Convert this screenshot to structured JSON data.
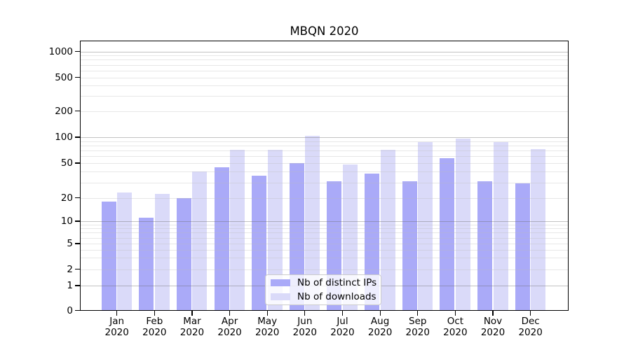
{
  "title": "MBQN 2020",
  "legend": {
    "items": [
      {
        "label": "Nb of distinct IPs",
        "color": "#aaaaf8"
      },
      {
        "label": "Nb of downloads",
        "color": "#dadaf9"
      }
    ]
  },
  "colors": {
    "bar_distinct_ips": "#aaaaf8",
    "bar_downloads": "#dadaf9",
    "grid_major": "#bdbdbd",
    "grid_minor": "#e9e9e9",
    "axis": "#000000"
  },
  "chart_data": {
    "type": "bar",
    "title": "MBQN 2020",
    "categories": [
      "Jan 2020",
      "Feb 2020",
      "Mar 2020",
      "Apr 2020",
      "May 2020",
      "Jun 2020",
      "Jul 2020",
      "Aug 2020",
      "Sep 2020",
      "Oct 2020",
      "Nov 2020",
      "Dec 2020"
    ],
    "series": [
      {
        "name": "Nb of distinct IPs",
        "color": "#aaaaf8",
        "values": [
          18,
          11,
          20,
          45,
          36,
          50,
          31,
          38,
          31,
          57,
          31,
          29
        ]
      },
      {
        "name": "Nb of downloads",
        "color": "#dadaf9",
        "values": [
          23,
          22,
          40,
          72,
          72,
          103,
          48,
          72,
          88,
          97,
          87,
          73
        ]
      }
    ],
    "xlabel": "",
    "ylabel": "",
    "yscale": "log_with_zero",
    "yticks": [
      0,
      1,
      2,
      5,
      10,
      20,
      50,
      100,
      200,
      500,
      1000
    ],
    "ylim": [
      0,
      1300
    ],
    "grid": true,
    "grid_on_top_of_bars": true,
    "legend_position": "lower center"
  }
}
